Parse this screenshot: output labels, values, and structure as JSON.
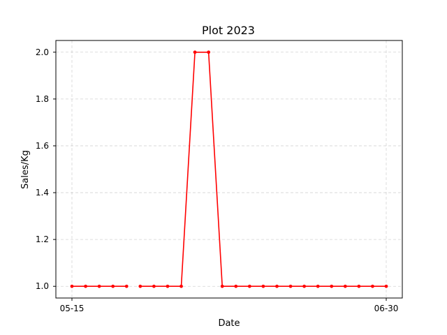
{
  "chart_data": {
    "type": "line",
    "title": "Plot 2023",
    "xlabel": "Date",
    "ylabel": "Sales/Kg",
    "x_ticks": [
      "05-15",
      "06-30"
    ],
    "ylim": [
      0.95,
      2.05
    ],
    "y_ticks": [
      1.0,
      1.2,
      1.4,
      1.6,
      1.8,
      2.0
    ],
    "grid": true,
    "line_color": "#ff0000",
    "series": [
      {
        "segments": [
          {
            "points": [
              {
                "x": "05-15",
                "y": 1.0
              },
              {
                "x": "05-17",
                "y": 1.0
              },
              {
                "x": "05-19",
                "y": 1.0
              },
              {
                "x": "05-21",
                "y": 1.0
              },
              {
                "x": "05-23",
                "y": 1.0
              }
            ]
          },
          {
            "points": [
              {
                "x": "05-25",
                "y": 1.0
              },
              {
                "x": "05-27",
                "y": 1.0
              },
              {
                "x": "05-29",
                "y": 1.0
              },
              {
                "x": "05-31",
                "y": 1.0
              },
              {
                "x": "06-02",
                "y": 2.0
              },
              {
                "x": "06-04",
                "y": 2.0
              },
              {
                "x": "06-06",
                "y": 1.0
              },
              {
                "x": "06-08",
                "y": 1.0
              },
              {
                "x": "06-10",
                "y": 1.0
              },
              {
                "x": "06-12",
                "y": 1.0
              },
              {
                "x": "06-14",
                "y": 1.0
              },
              {
                "x": "06-16",
                "y": 1.0
              },
              {
                "x": "06-18",
                "y": 1.0
              },
              {
                "x": "06-20",
                "y": 1.0
              },
              {
                "x": "06-22",
                "y": 1.0
              },
              {
                "x": "06-24",
                "y": 1.0
              },
              {
                "x": "06-26",
                "y": 1.0
              },
              {
                "x": "06-28",
                "y": 1.0
              },
              {
                "x": "06-30",
                "y": 1.0
              }
            ]
          }
        ]
      }
    ]
  }
}
